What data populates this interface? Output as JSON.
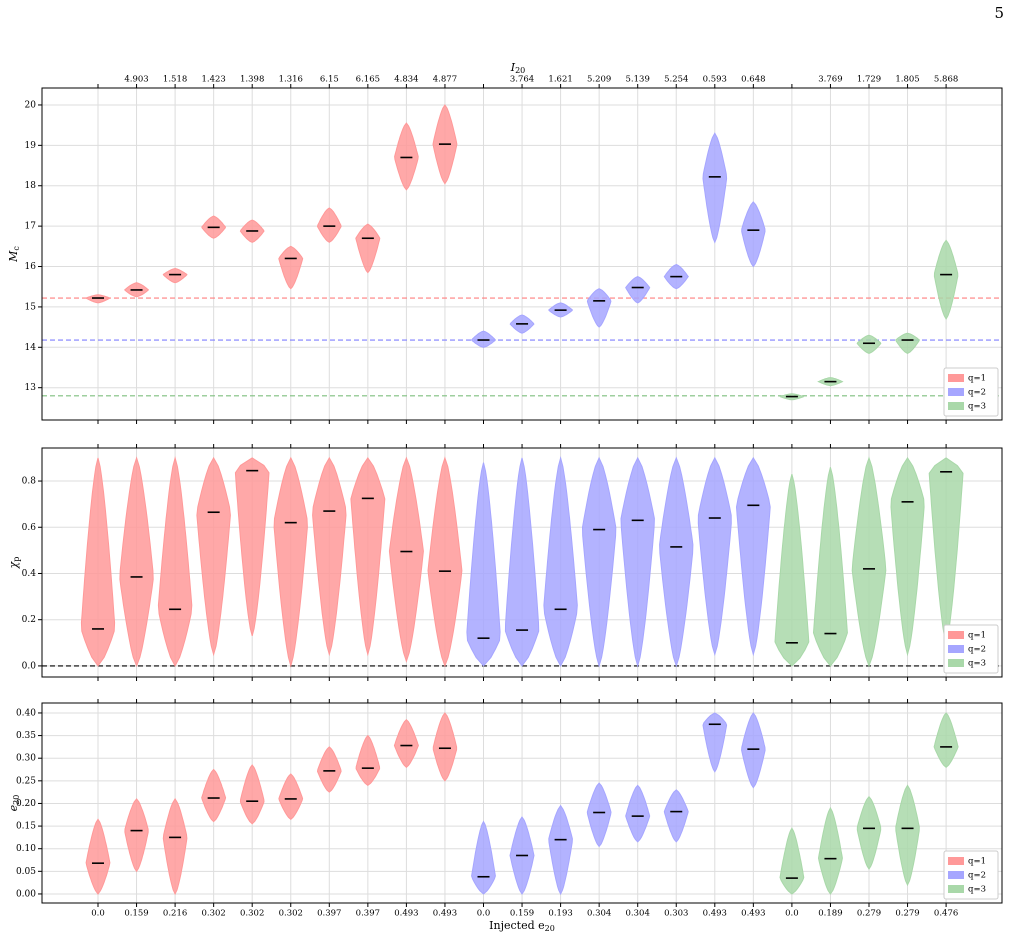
{
  "page_number": "5",
  "chart_data": [
    {
      "type": "violin",
      "ylabel": {
        "main": "M",
        "sub": "c"
      },
      "x2label": {
        "main": "I",
        "sub": "20"
      },
      "x2_categories": [
        null,
        "4.903",
        "1.518",
        "1.423",
        "1.398",
        "1.316",
        "6.15",
        "6.165",
        "4.834",
        "4.877",
        null,
        "3.764",
        "1.621",
        "5.209",
        "5.139",
        "5.254",
        "0.593",
        "0.648",
        null,
        "3.769",
        "1.729",
        "1.805",
        "5.868"
      ],
      "ylim": [
        12.2,
        20.42
      ],
      "yticks": [
        13,
        14,
        15,
        16,
        17,
        18,
        19,
        20
      ],
      "grid": true,
      "legend": "lower right",
      "hlines": [
        {
          "value": 15.22,
          "color": "#ff7f7f"
        },
        {
          "value": 14.18,
          "color": "#7f7fff"
        },
        {
          "value": 12.8,
          "color": "#7fbf7f"
        }
      ],
      "series": [
        {
          "name": "q=1",
          "color": "#ff9999",
          "values": [
            15.22,
            15.42,
            15.8,
            16.97,
            16.88,
            16.2,
            17.0,
            16.7,
            18.7,
            19.03,
            null,
            null,
            null,
            null,
            null,
            null,
            null,
            null,
            null,
            null,
            null,
            null,
            null
          ],
          "min": [
            15.1,
            15.25,
            15.6,
            16.7,
            16.6,
            15.45,
            16.6,
            15.85,
            17.9,
            18.05,
            null,
            null,
            null,
            null,
            null,
            null,
            null,
            null,
            null,
            null,
            null,
            null,
            null
          ],
          "max": [
            15.3,
            15.6,
            15.95,
            17.25,
            17.15,
            16.5,
            17.45,
            17.05,
            19.55,
            20.0,
            null,
            null,
            null,
            null,
            null,
            null,
            null,
            null,
            null,
            null,
            null,
            null,
            null
          ]
        },
        {
          "name": "q=2",
          "color": "#a6a6ff",
          "values": [
            null,
            null,
            null,
            null,
            null,
            null,
            null,
            null,
            null,
            null,
            14.18,
            14.58,
            14.92,
            15.15,
            15.48,
            15.75,
            18.22,
            16.9,
            null,
            null,
            null,
            null,
            null
          ],
          "min": [
            null,
            null,
            null,
            null,
            null,
            null,
            null,
            null,
            null,
            null,
            14.0,
            14.35,
            14.75,
            14.5,
            15.1,
            15.45,
            16.6,
            16.0,
            null,
            null,
            null,
            null,
            null
          ],
          "max": [
            null,
            null,
            null,
            null,
            null,
            null,
            null,
            null,
            null,
            null,
            14.4,
            14.8,
            15.1,
            15.45,
            15.75,
            16.05,
            19.3,
            17.6,
            null,
            null,
            null,
            null,
            null
          ]
        },
        {
          "name": "q=3",
          "color": "#a9d8a9",
          "values": [
            null,
            null,
            null,
            null,
            null,
            null,
            null,
            null,
            null,
            null,
            null,
            null,
            null,
            null,
            null,
            null,
            null,
            null,
            12.78,
            13.15,
            14.1,
            14.18,
            15.8
          ],
          "min": [
            null,
            null,
            null,
            null,
            null,
            null,
            null,
            null,
            null,
            null,
            null,
            null,
            null,
            null,
            null,
            null,
            null,
            null,
            12.7,
            13.05,
            13.85,
            13.85,
            14.7
          ],
          "max": [
            null,
            null,
            null,
            null,
            null,
            null,
            null,
            null,
            null,
            null,
            null,
            null,
            null,
            null,
            null,
            null,
            null,
            null,
            12.85,
            13.25,
            14.3,
            14.35,
            16.65
          ]
        }
      ]
    },
    {
      "type": "violin",
      "ylabel": {
        "main": "χ",
        "sub": "p"
      },
      "ylim": [
        -0.048,
        0.943
      ],
      "yticks": [
        {
          "value": 0,
          "label": "0.0"
        },
        0.2,
        0.4,
        0.6,
        0.8
      ],
      "grid": true,
      "legend": "lower right",
      "hlines": [
        {
          "value": 0,
          "color": "#000000"
        }
      ],
      "series": [
        {
          "name": "q=1",
          "color": "#ff9999",
          "values": [
            0.16,
            0.385,
            0.245,
            0.665,
            0.845,
            0.62,
            0.67,
            0.725,
            0.495,
            0.41,
            null,
            null,
            null,
            null,
            null,
            null,
            null,
            null,
            null,
            null,
            null,
            null,
            null
          ],
          "min": [
            0.0,
            0.0,
            0.0,
            0.05,
            0.13,
            0.0,
            0.05,
            0.05,
            0.02,
            0.0,
            null,
            null,
            null,
            null,
            null,
            null,
            null,
            null,
            null,
            null,
            null,
            null,
            null
          ],
          "max": [
            0.9,
            0.9,
            0.9,
            0.9,
            0.9,
            0.9,
            0.9,
            0.9,
            0.9,
            0.9,
            null,
            null,
            null,
            null,
            null,
            null,
            null,
            null,
            null,
            null,
            null,
            null,
            null
          ]
        },
        {
          "name": "q=2",
          "color": "#a6a6ff",
          "values": [
            null,
            null,
            null,
            null,
            null,
            null,
            null,
            null,
            null,
            null,
            0.12,
            0.155,
            0.245,
            0.59,
            0.63,
            0.515,
            0.64,
            0.695,
            null,
            null,
            null,
            null,
            null
          ],
          "min": [
            null,
            null,
            null,
            null,
            null,
            null,
            null,
            null,
            null,
            null,
            0.0,
            0.0,
            0.0,
            0.0,
            0.0,
            0.0,
            0.05,
            0.05,
            null,
            null,
            null,
            null,
            null
          ],
          "max": [
            null,
            null,
            null,
            null,
            null,
            null,
            null,
            null,
            null,
            null,
            0.88,
            0.9,
            0.9,
            0.9,
            0.9,
            0.9,
            0.9,
            0.9,
            null,
            null,
            null,
            null,
            null
          ]
        },
        {
          "name": "q=3",
          "color": "#a9d8a9",
          "values": [
            null,
            null,
            null,
            null,
            null,
            null,
            null,
            null,
            null,
            null,
            null,
            null,
            null,
            null,
            null,
            null,
            null,
            null,
            0.1,
            0.14,
            0.42,
            0.71,
            0.84
          ],
          "min": [
            null,
            null,
            null,
            null,
            null,
            null,
            null,
            null,
            null,
            null,
            null,
            null,
            null,
            null,
            null,
            null,
            null,
            null,
            0.0,
            0.0,
            0.0,
            0.05,
            0.1
          ],
          "max": [
            null,
            null,
            null,
            null,
            null,
            null,
            null,
            null,
            null,
            null,
            null,
            null,
            null,
            null,
            null,
            null,
            null,
            null,
            0.83,
            0.86,
            0.9,
            0.9,
            0.9
          ]
        }
      ]
    },
    {
      "type": "violin",
      "ylabel": {
        "main": "e",
        "sub": "20"
      },
      "xlabel": {
        "main": "Injected e",
        "sub": "20"
      },
      "categories": [
        "0.0",
        "0.159",
        "0.216",
        "0.302",
        "0.302",
        "0.302",
        "0.397",
        "0.397",
        "0.493",
        "0.493",
        "0.0",
        "0.159",
        "0.193",
        "0.304",
        "0.304",
        "0.303",
        "0.493",
        "0.493",
        "0.0",
        "0.189",
        "0.279",
        "0.279",
        "0.476"
      ],
      "ylim": [
        -0.02,
        0.422
      ],
      "yticks": [
        {
          "value": 0,
          "label": "0.00"
        },
        0.05,
        {
          "value": 0.1,
          "label": "0.10"
        },
        0.15,
        {
          "value": 0.2,
          "label": "0.20"
        },
        0.25,
        {
          "value": 0.3,
          "label": "0.30"
        },
        0.35,
        {
          "value": 0.4,
          "label": "0.40"
        }
      ],
      "grid": true,
      "legend": "lower right",
      "series": [
        {
          "name": "q=1",
          "color": "#ff9999",
          "values": [
            0.068,
            0.14,
            0.125,
            0.212,
            0.205,
            0.21,
            0.272,
            0.278,
            0.328,
            0.322,
            null,
            null,
            null,
            null,
            null,
            null,
            null,
            null,
            null,
            null,
            null,
            null,
            null
          ],
          "min": [
            0.0,
            0.05,
            0.0,
            0.16,
            0.155,
            0.165,
            0.225,
            0.24,
            0.28,
            0.25,
            null,
            null,
            null,
            null,
            null,
            null,
            null,
            null,
            null,
            null,
            null,
            null,
            null
          ],
          "max": [
            0.165,
            0.21,
            0.21,
            0.275,
            0.285,
            0.265,
            0.325,
            0.35,
            0.385,
            0.4,
            null,
            null,
            null,
            null,
            null,
            null,
            null,
            null,
            null,
            null,
            null,
            null,
            null
          ]
        },
        {
          "name": "q=2",
          "color": "#a6a6ff",
          "values": [
            null,
            null,
            null,
            null,
            null,
            null,
            null,
            null,
            null,
            null,
            0.038,
            0.085,
            0.12,
            0.18,
            0.172,
            0.182,
            0.375,
            0.32,
            null,
            null,
            null,
            null,
            null
          ],
          "min": [
            null,
            null,
            null,
            null,
            null,
            null,
            null,
            null,
            null,
            null,
            0.0,
            0.0,
            0.0,
            0.105,
            0.115,
            0.115,
            0.27,
            0.235,
            null,
            null,
            null,
            null,
            null
          ],
          "max": [
            null,
            null,
            null,
            null,
            null,
            null,
            null,
            null,
            null,
            null,
            0.16,
            0.17,
            0.195,
            0.245,
            0.24,
            0.23,
            0.4,
            0.4,
            null,
            null,
            null,
            null,
            null
          ]
        },
        {
          "name": "q=3",
          "color": "#a9d8a9",
          "values": [
            null,
            null,
            null,
            null,
            null,
            null,
            null,
            null,
            null,
            null,
            null,
            null,
            null,
            null,
            null,
            null,
            null,
            null,
            0.035,
            0.078,
            0.145,
            0.145,
            0.325
          ],
          "min": [
            null,
            null,
            null,
            null,
            null,
            null,
            null,
            null,
            null,
            null,
            null,
            null,
            null,
            null,
            null,
            null,
            null,
            null,
            0.0,
            0.0,
            0.055,
            0.02,
            0.28
          ],
          "max": [
            null,
            null,
            null,
            null,
            null,
            null,
            null,
            null,
            null,
            null,
            null,
            null,
            null,
            null,
            null,
            null,
            null,
            null,
            0.145,
            0.19,
            0.215,
            0.24,
            0.4
          ]
        }
      ]
    }
  ]
}
